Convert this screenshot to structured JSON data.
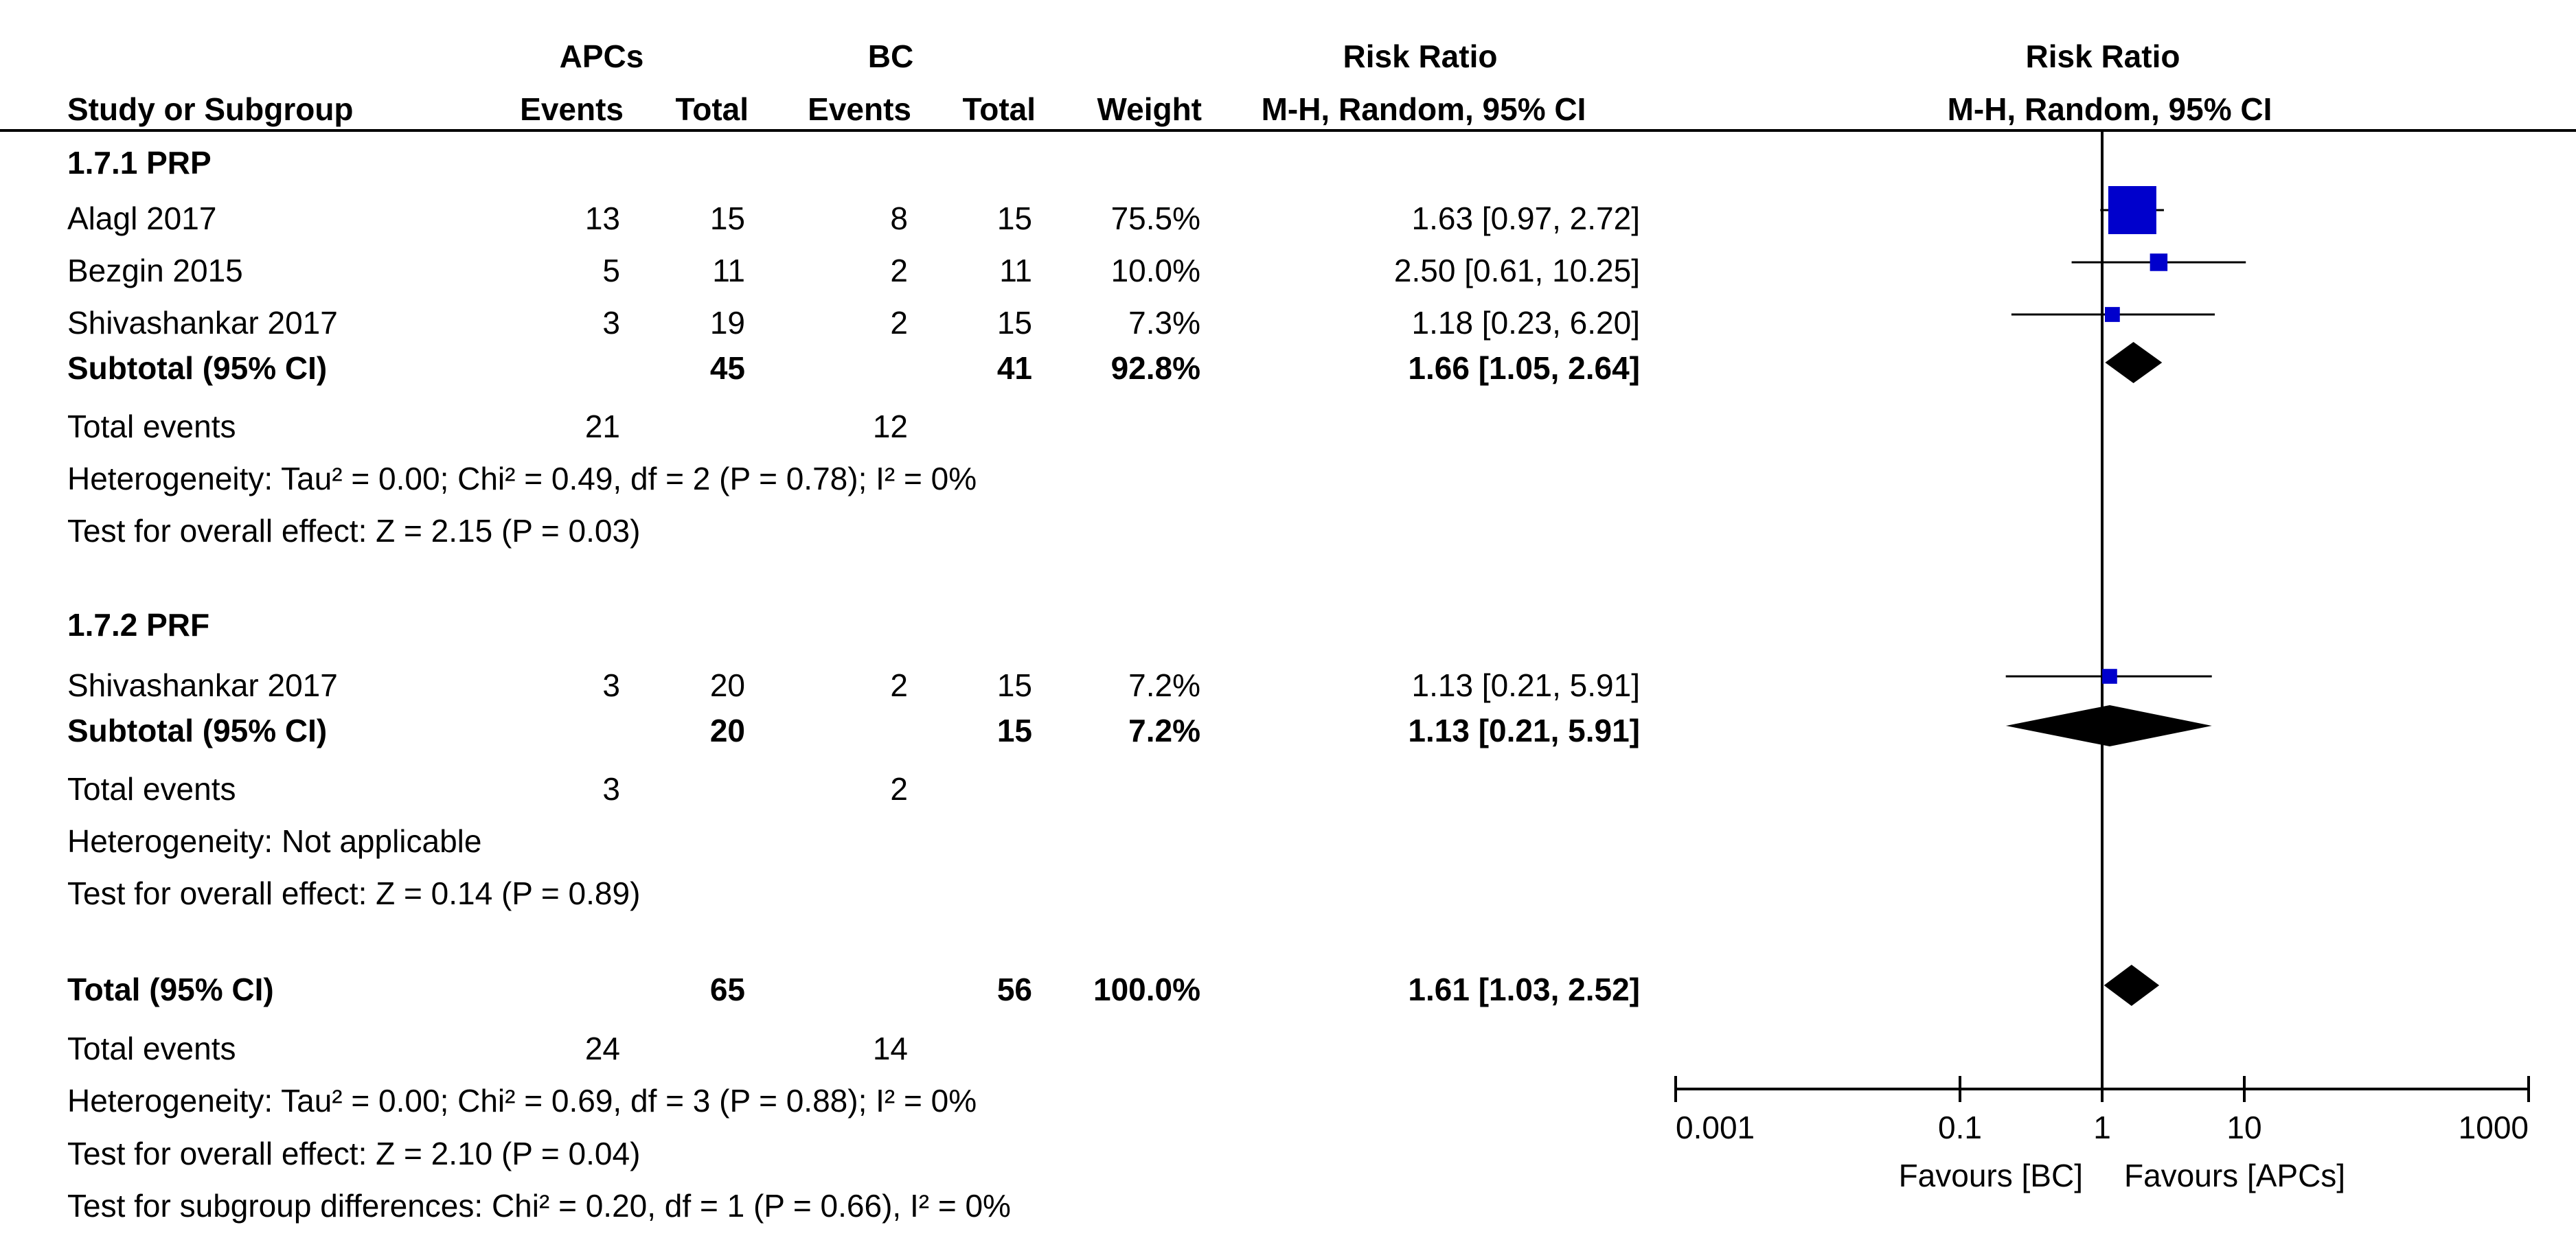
{
  "headers": {
    "group_apcs": "APCs",
    "group_bc": "BC",
    "group_rr_text": "Risk Ratio",
    "group_rr_plot": "Risk Ratio",
    "study": "Study or Subgroup",
    "events1": "Events",
    "total1": "Total",
    "events2": "Events",
    "total2": "Total",
    "weight": "Weight",
    "method_text": "M-H, Random, 95% CI",
    "method_plot": "M-H, Random, 95% CI"
  },
  "subgroups": [
    {
      "title": "1.7.1 PRP",
      "studies": [
        {
          "name": "Alagl 2017",
          "e1": "13",
          "n1": "15",
          "e2": "8",
          "n2": "15",
          "weight": "75.5%",
          "ci": "1.63 [0.97, 2.72]"
        },
        {
          "name": "Bezgin 2015",
          "e1": "5",
          "n1": "11",
          "e2": "2",
          "n2": "11",
          "weight": "10.0%",
          "ci": "2.50 [0.61, 10.25]"
        },
        {
          "name": "Shivashankar 2017",
          "e1": "3",
          "n1": "19",
          "e2": "2",
          "n2": "15",
          "weight": "7.3%",
          "ci": "1.18 [0.23, 6.20]"
        }
      ],
      "subtotal": {
        "label": "Subtotal (95% CI)",
        "n1": "45",
        "n2": "41",
        "weight": "92.8%",
        "ci": "1.66 [1.05, 2.64]"
      },
      "total_events": {
        "label": "Total events",
        "e1": "21",
        "e2": "12"
      },
      "heterogeneity": "Heterogeneity: Tau² = 0.00; Chi² = 0.49, df = 2 (P = 0.78); I² = 0%",
      "overall": "Test for overall effect: Z = 2.15 (P = 0.03)"
    },
    {
      "title": "1.7.2 PRF",
      "studies": [
        {
          "name": "Shivashankar 2017",
          "e1": "3",
          "n1": "20",
          "e2": "2",
          "n2": "15",
          "weight": "7.2%",
          "ci": "1.13 [0.21, 5.91]"
        }
      ],
      "subtotal": {
        "label": "Subtotal (95% CI)",
        "n1": "20",
        "n2": "15",
        "weight": "7.2%",
        "ci": "1.13 [0.21, 5.91]"
      },
      "total_events": {
        "label": "Total events",
        "e1": "3",
        "e2": "2"
      },
      "heterogeneity": "Heterogeneity: Not applicable",
      "overall": "Test for overall effect: Z = 0.14 (P = 0.89)"
    }
  ],
  "total": {
    "label": "Total (95% CI)",
    "n1": "65",
    "n2": "56",
    "weight": "100.0%",
    "ci": "1.61 [1.03, 2.52]",
    "total_events": {
      "label": "Total events",
      "e1": "24",
      "e2": "14"
    },
    "heterogeneity": "Heterogeneity: Tau² = 0.00; Chi² = 0.69, df = 3 (P = 0.88); I² = 0%",
    "overall": "Test for overall effect: Z = 2.10 (P = 0.04)",
    "subgroup_diff": "Test for subgroup differences: Chi² = 0.20, df = 1 (P = 0.66), I² = 0%"
  },
  "axis": {
    "ticks": [
      0.001,
      0.1,
      1,
      10,
      1000
    ],
    "tick_labels": [
      "0.001",
      "0.1",
      "1",
      "10",
      "1000"
    ],
    "favours_left": "Favours [BC]",
    "favours_right": "Favours [APCs]"
  },
  "colors": {
    "study_marker": "#0000cc",
    "summary_diamond": "#000000"
  },
  "chart_data": {
    "type": "forest",
    "x_scale": "log",
    "xlim": [
      0.001,
      1000
    ],
    "reference_line": 1,
    "series": [
      {
        "name": "Alagl 2017",
        "subgroup": "1.7.1 PRP",
        "rr": 1.63,
        "lower": 0.97,
        "upper": 2.72,
        "weight": 75.5
      },
      {
        "name": "Bezgin 2015",
        "subgroup": "1.7.1 PRP",
        "rr": 2.5,
        "lower": 0.61,
        "upper": 10.25,
        "weight": 10.0
      },
      {
        "name": "Shivashankar 2017",
        "subgroup": "1.7.1 PRP",
        "rr": 1.18,
        "lower": 0.23,
        "upper": 6.2,
        "weight": 7.3
      },
      {
        "name": "Shivashankar 2017",
        "subgroup": "1.7.2 PRF",
        "rr": 1.13,
        "lower": 0.21,
        "upper": 5.91,
        "weight": 7.2
      }
    ],
    "summaries": [
      {
        "name": "Subtotal (95% CI)",
        "subgroup": "1.7.1 PRP",
        "rr": 1.66,
        "lower": 1.05,
        "upper": 2.64
      },
      {
        "name": "Subtotal (95% CI)",
        "subgroup": "1.7.2 PRF",
        "rr": 1.13,
        "lower": 0.21,
        "upper": 5.91
      },
      {
        "name": "Total (95% CI)",
        "rr": 1.61,
        "lower": 1.03,
        "upper": 2.52
      }
    ]
  }
}
